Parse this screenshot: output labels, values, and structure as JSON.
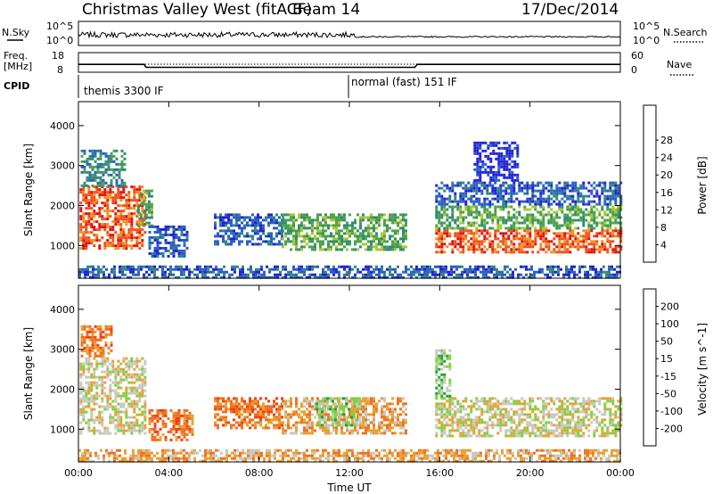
{
  "header": {
    "title": "Christmas Valley West (fitACF)",
    "beam": "Beam 14",
    "date": "17/Dec/2014"
  },
  "summary": {
    "nsky_label": "N.Sky",
    "nsky_ticks": [
      "10^5",
      "10^0"
    ],
    "nsky_right_ticks": [
      "10^5",
      "10^0"
    ],
    "nsearch_label": "N.Search",
    "freq_label": "Freq.",
    "freq_unit": "[MHz]",
    "freq_ticks": [
      "18",
      "8"
    ],
    "nave_ticks": [
      "60",
      "0"
    ],
    "nave_label": "Nave",
    "cpid_label": "CPID",
    "cpid_segments": [
      {
        "label": "themis 3300 IF",
        "start_h": 0,
        "end_h": 12
      },
      {
        "label": "normal (fast) 151 IF",
        "start_h": 12,
        "end_h": 24
      }
    ],
    "freq_series_mhz": [
      {
        "h": 0,
        "v": 12
      },
      {
        "h": 2.9,
        "v": 12
      },
      {
        "h": 3.0,
        "v": 10.5
      },
      {
        "h": 14.9,
        "v": 10.5
      },
      {
        "h": 15.0,
        "v": 12
      },
      {
        "h": 24,
        "v": 12
      }
    ]
  },
  "chart_data": [
    {
      "type": "heatmap",
      "ylabel": "Slant Range [km]",
      "xlim": [
        0,
        24
      ],
      "ylim": [
        180,
        4600
      ],
      "yticks": [
        "1000",
        "2000",
        "3000",
        "4000"
      ],
      "colorbar": {
        "label": "Power [dB]",
        "ticks": [
          "4",
          "8",
          "12",
          "16",
          "20",
          "24",
          "28"
        ],
        "colors": [
          "#2020d8",
          "#2a5cc8",
          "#2f8a7a",
          "#4ca24a",
          "#a8c830",
          "#f0c020",
          "#f09020",
          "#f05018",
          "#e01010"
        ]
      },
      "regions": [
        {
          "h0": 0.05,
          "h1": 2.9,
          "r0": 900,
          "r1": 2500,
          "level": 7
        },
        {
          "h0": 0.1,
          "h1": 2.0,
          "r0": 2500,
          "r1": 3400,
          "level": 2
        },
        {
          "h0": 2.6,
          "h1": 3.2,
          "r0": 1500,
          "r1": 2400,
          "level": 3
        },
        {
          "h0": 3.1,
          "h1": 4.8,
          "r0": 700,
          "r1": 1500,
          "level": 1
        },
        {
          "h0": 6.0,
          "h1": 9.0,
          "r0": 1000,
          "r1": 1800,
          "level": 1
        },
        {
          "h0": 9.0,
          "h1": 14.5,
          "r0": 900,
          "r1": 1800,
          "level": 3
        },
        {
          "h0": 0.0,
          "h1": 24.0,
          "r0": 230,
          "r1": 500,
          "level": 1
        },
        {
          "h0": 15.8,
          "h1": 24.0,
          "r0": 800,
          "r1": 1400,
          "level": 7
        },
        {
          "h0": 15.8,
          "h1": 24.0,
          "r0": 1400,
          "r1": 2000,
          "level": 3
        },
        {
          "h0": 15.8,
          "h1": 24.0,
          "r0": 2000,
          "r1": 2600,
          "level": 1
        },
        {
          "h0": 17.5,
          "h1": 19.5,
          "r0": 2600,
          "r1": 3600,
          "level": 0
        }
      ]
    },
    {
      "type": "heatmap",
      "ylabel": "Slant Range [km]",
      "xlabel": "Time UT",
      "xlim": [
        0,
        24
      ],
      "ylim": [
        180,
        4600
      ],
      "yticks": [
        "1000",
        "2000",
        "3000",
        "4000"
      ],
      "xticks": [
        "00:00",
        "04:00",
        "08:00",
        "12:00",
        "16:00",
        "20:00",
        "00:00"
      ],
      "colorbar": {
        "label": "Velocity [m s^-1]",
        "ticks": [
          "200",
          "100",
          "50",
          "15",
          "-15",
          "-50",
          "-100",
          "-200"
        ],
        "colors": [
          "#2038c8",
          "#3070c8",
          "#20a040",
          "#80d040",
          "#c8c8c0",
          "#e8a030",
          "#f07020",
          "#f04010",
          "#e01010"
        ]
      },
      "regions": [
        {
          "h0": 0.05,
          "h1": 2.9,
          "r0": 900,
          "r1": 2800,
          "level": 4
        },
        {
          "h0": 0.1,
          "h1": 1.5,
          "r0": 2800,
          "r1": 3600,
          "level": 6
        },
        {
          "h0": 3.1,
          "h1": 5.0,
          "r0": 700,
          "r1": 1500,
          "level": 6
        },
        {
          "h0": 6.0,
          "h1": 9.0,
          "r0": 1000,
          "r1": 1800,
          "level": 6
        },
        {
          "h0": 9.0,
          "h1": 14.5,
          "r0": 900,
          "r1": 1800,
          "level": 5
        },
        {
          "h0": 10.5,
          "h1": 12.5,
          "r0": 1100,
          "r1": 1800,
          "level": 3
        },
        {
          "h0": 0.0,
          "h1": 24.0,
          "r0": 230,
          "r1": 500,
          "level": 5
        },
        {
          "h0": 15.8,
          "h1": 24.0,
          "r0": 800,
          "r1": 1800,
          "level": 4
        },
        {
          "h0": 15.8,
          "h1": 16.5,
          "r0": 1800,
          "r1": 3000,
          "level": 3
        }
      ]
    }
  ]
}
